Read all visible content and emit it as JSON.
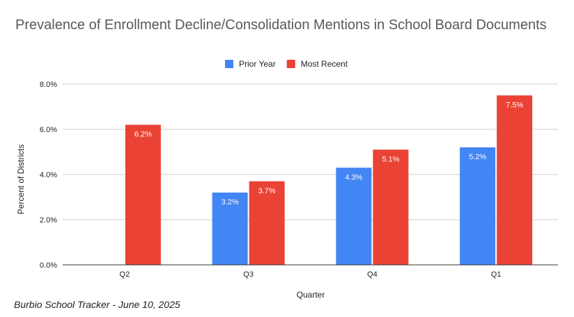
{
  "chart_data": {
    "type": "bar",
    "title": "Prevalence of Enrollment Decline/Consolidation Mentions in School Board Documents",
    "xlabel": "Quarter",
    "ylabel": "Percent of Districts",
    "categories": [
      "Q2",
      "Q3",
      "Q4",
      "Q1"
    ],
    "series": [
      {
        "name": "Prior Year",
        "color": "#4285f4",
        "values": [
          null,
          3.2,
          4.3,
          5.2
        ],
        "labels": [
          "",
          "3.2%",
          "4.3%",
          "5.2%"
        ]
      },
      {
        "name": "Most Recent",
        "color": "#ea4335",
        "values": [
          6.2,
          3.7,
          5.1,
          7.5
        ],
        "labels": [
          "6.2%",
          "3.7%",
          "5.1%",
          "7.5%"
        ]
      }
    ],
    "ylim": [
      0,
      8
    ],
    "yticks": [
      0,
      2,
      4,
      6,
      8
    ],
    "ytick_labels": [
      "0.0%",
      "2.0%",
      "4.0%",
      "6.0%",
      "8.0%"
    ],
    "grid": true,
    "legend_position": "top-center"
  },
  "footer": {
    "source": "Burbio School Tracker - June 10, 2025"
  }
}
